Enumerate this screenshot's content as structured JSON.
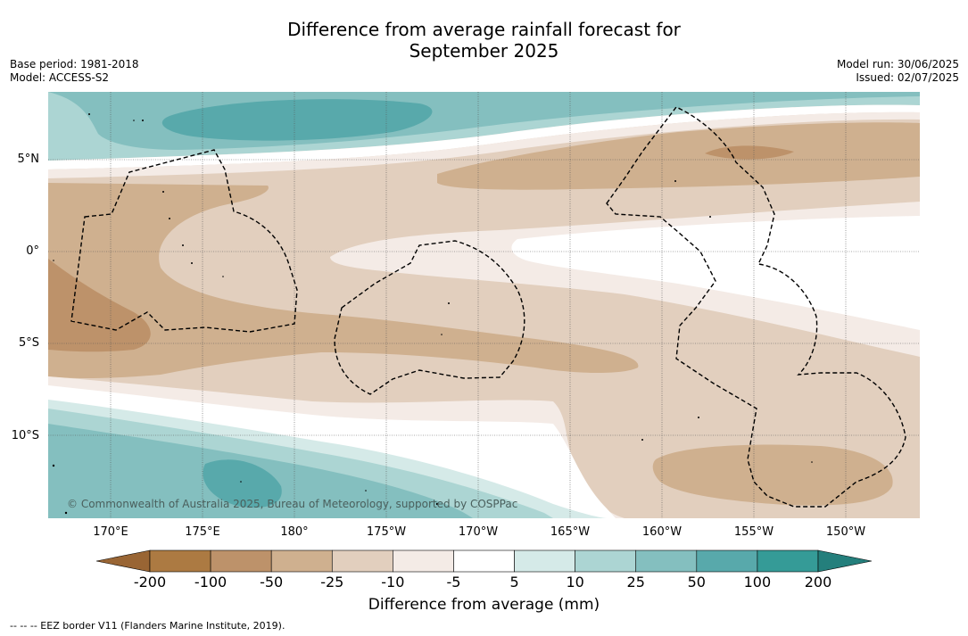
{
  "title_line1": "Difference from average rainfall forecast for",
  "title_line2": "September 2025",
  "meta": {
    "base_period": "Base period: 1981-2018",
    "model": "Model: ACCESS-S2",
    "model_run": "Model run: 30/06/2025",
    "issued": "Issued: 02/07/2025"
  },
  "lat_labels": [
    "5°N",
    "0°",
    "5°S",
    "10°S"
  ],
  "lon_labels": [
    "170°E",
    "175°E",
    "180°",
    "175°W",
    "170°W",
    "165°W",
    "160°W",
    "155°W",
    "150°W"
  ],
  "copyright": "© Commonwealth of Australia 2025, Bureau of Meteorology, supported by COSPPac",
  "colorbar": {
    "title": "Difference from average (mm)",
    "ticks": [
      "-200",
      "-100",
      "-50",
      "-25",
      "-10",
      "-5",
      "5",
      "10",
      "25",
      "50",
      "100",
      "200"
    ],
    "colors": [
      "#ac7a42",
      "#bd926a",
      "#cfb08f",
      "#e2cfbe",
      "#f4ebe6",
      "#ffffff",
      "#d5eae8",
      "#acd5d3",
      "#84bfbf",
      "#58a9ab",
      "#359b97"
    ],
    "under_color": "#996534",
    "over_color": "#247f7c"
  },
  "footnote": "--  --  -- EEZ border V11 (Flanders Marine Institute, 2019).",
  "chart_data": {
    "type": "heatmap",
    "variable": "Difference from average rainfall",
    "units": "mm",
    "period": "September 2025",
    "lon_ticks": [
      "170°E",
      "175°E",
      "180°",
      "175°W",
      "170°W",
      "165°W",
      "160°W",
      "155°W",
      "150°W"
    ],
    "lat_ticks": [
      "5°N",
      "0°",
      "5°S",
      "10°S"
    ],
    "levels": [
      -200,
      -100,
      -50,
      -25,
      -10,
      -5,
      5,
      10,
      25,
      50,
      100,
      200
    ]
  }
}
